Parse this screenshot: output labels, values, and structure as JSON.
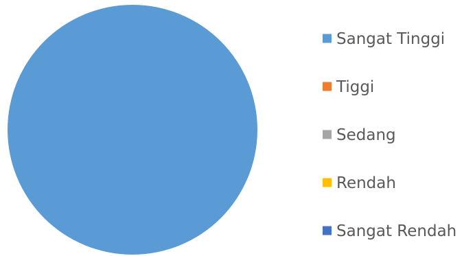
{
  "chart_data": {
    "type": "pie",
    "categories": [
      "Sangat Tinggi",
      "Tiggi",
      "Sedang",
      "Rendah",
      "Sangat Rendah"
    ],
    "values": [
      100,
      0,
      0,
      0,
      0
    ],
    "colors": [
      "#5B9BD5",
      "#ED7D31",
      "#A5A5A5",
      "#FFC000",
      "#4472C4"
    ],
    "legend_position": "right"
  }
}
